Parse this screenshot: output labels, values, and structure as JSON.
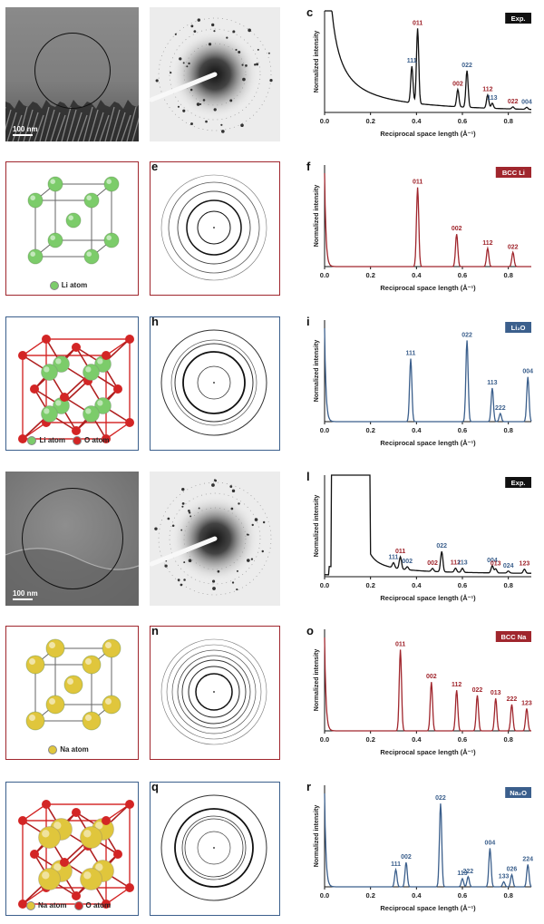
{
  "colors": {
    "red": "#a0262d",
    "blue": "#3b5f8c",
    "li_green": "#7ccc6a",
    "o_red": "#d32525",
    "na_yellow": "#e0c63c",
    "black": "#111111"
  },
  "rows": [
    {
      "labels": [
        "a",
        "b",
        "c"
      ],
      "frame": "none",
      "left_kind": "em",
      "scale_bar": "100 nm",
      "legend": [],
      "middle_kind": "diffraction"
    },
    {
      "labels": [
        "d",
        "e",
        "f"
      ],
      "frame": "red",
      "left_kind": "crystal-bcc-li",
      "legend": [
        {
          "text": "Li atom",
          "color": "#7ccc6a"
        }
      ],
      "middle_kind": "rings-li"
    },
    {
      "labels": [
        "g",
        "h",
        "i"
      ],
      "frame": "blue",
      "left_kind": "crystal-li2o",
      "legend": [
        {
          "text": "Li atom",
          "color": "#7ccc6a"
        },
        {
          "text": "O atom",
          "color": "#d32525"
        }
      ],
      "middle_kind": "rings-li2o"
    },
    {
      "labels": [
        "j",
        "k",
        "l"
      ],
      "frame": "none",
      "left_kind": "em",
      "scale_bar": "100 nm",
      "legend": [],
      "middle_kind": "diffraction"
    },
    {
      "labels": [
        "m",
        "n",
        "o"
      ],
      "frame": "red",
      "left_kind": "crystal-bcc-na",
      "legend": [
        {
          "text": "Na atom",
          "color": "#e0c63c"
        }
      ],
      "middle_kind": "rings-na"
    },
    {
      "labels": [
        "p",
        "q",
        "r"
      ],
      "frame": "blue",
      "left_kind": "crystal-na2o",
      "legend": [
        {
          "text": "Na atom",
          "color": "#e0c63c"
        },
        {
          "text": "O atom",
          "color": "#d32525"
        }
      ],
      "middle_kind": "rings-na2o"
    }
  ],
  "chart_data": [
    {
      "panel": "c",
      "type": "line",
      "badge": "Exp.",
      "badge_color": "#111111",
      "xlabel": "Reciprocal space length (Å⁻¹)",
      "ylabel": "Normalized intensity",
      "xlim": [
        0,
        0.9
      ],
      "xticks": [
        "0.0",
        "0.2",
        "0.4",
        "0.6",
        "0.8"
      ],
      "line_color": "#111111",
      "baseline": "decay",
      "peaks": [
        {
          "x": 0.38,
          "h": 0.36,
          "label": "111",
          "color": "#3b5f8c"
        },
        {
          "x": 0.405,
          "h": 0.74,
          "label": "011",
          "color": "#a0262d"
        },
        {
          "x": 0.58,
          "h": 0.17,
          "label": "002",
          "color": "#a0262d"
        },
        {
          "x": 0.62,
          "h": 0.36,
          "label": "022",
          "color": "#3b5f8c"
        },
        {
          "x": 0.71,
          "h": 0.13,
          "label": "112",
          "color": "#a0262d"
        },
        {
          "x": 0.73,
          "h": 0.05,
          "label": "113",
          "color": "#3b5f8c"
        },
        {
          "x": 0.82,
          "h": 0.02,
          "label": "022",
          "color": "#a0262d"
        },
        {
          "x": 0.88,
          "h": 0.02,
          "label": "004",
          "color": "#3b5f8c"
        }
      ]
    },
    {
      "panel": "f",
      "type": "line",
      "badge": "BCC Li",
      "badge_color": "#a0262d",
      "xlabel": "Reciprocal space length (Å⁻¹)",
      "ylabel": "Normalized intensity",
      "xlim": [
        0,
        0.9
      ],
      "xticks": [
        "0.0",
        "0.2",
        "0.4",
        "0.6",
        "0.8"
      ],
      "line_color": "#a0262d",
      "baseline": "flat",
      "peaks": [
        {
          "x": 0.405,
          "h": 0.78,
          "label": "011",
          "color": "#a0262d"
        },
        {
          "x": 0.575,
          "h": 0.32,
          "label": "002",
          "color": "#a0262d"
        },
        {
          "x": 0.71,
          "h": 0.18,
          "label": "112",
          "color": "#a0262d"
        },
        {
          "x": 0.82,
          "h": 0.14,
          "label": "022",
          "color": "#a0262d"
        }
      ]
    },
    {
      "panel": "i",
      "type": "line",
      "badge": "Li₂O",
      "badge_color": "#3b5f8c",
      "xlabel": "Reciprocal space length (Å⁻¹)",
      "ylabel": "Normalized intensity",
      "xlim": [
        0,
        0.9
      ],
      "xticks": [
        "0.0",
        "0.2",
        "0.4",
        "0.6",
        "0.8"
      ],
      "line_color": "#3b5f8c",
      "baseline": "flat",
      "peaks": [
        {
          "x": 0.375,
          "h": 0.62,
          "label": "111",
          "color": "#3b5f8c"
        },
        {
          "x": 0.62,
          "h": 0.8,
          "label": "022",
          "color": "#3b5f8c"
        },
        {
          "x": 0.73,
          "h": 0.33,
          "label": "113",
          "color": "#3b5f8c"
        },
        {
          "x": 0.765,
          "h": 0.08,
          "label": "222",
          "color": "#3b5f8c"
        },
        {
          "x": 0.885,
          "h": 0.44,
          "label": "004",
          "color": "#3b5f8c"
        }
      ]
    },
    {
      "panel": "l",
      "type": "line",
      "badge": "Exp.",
      "badge_color": "#111111",
      "xlabel": "Reciprocal space length (Å⁻¹)",
      "ylabel": "Normalized intensity",
      "xlim": [
        0,
        0.9
      ],
      "xticks": [
        "0.0",
        "0.2",
        "0.4",
        "0.6",
        "0.8"
      ],
      "line_color": "#111111",
      "baseline": "decay2",
      "peaks": [
        {
          "x": 0.3,
          "h": 0.05,
          "label": "111",
          "color": "#3b5f8c"
        },
        {
          "x": 0.33,
          "h": 0.12,
          "label": "011",
          "color": "#a0262d"
        },
        {
          "x": 0.36,
          "h": 0.03,
          "label": "002",
          "color": "#3b5f8c"
        },
        {
          "x": 0.47,
          "h": 0.03,
          "label": "002",
          "color": "#a0262d"
        },
        {
          "x": 0.51,
          "h": 0.2,
          "label": "022",
          "color": "#3b5f8c"
        },
        {
          "x": 0.57,
          "h": 0.04,
          "label": "112",
          "color": "#a0262d"
        },
        {
          "x": 0.6,
          "h": 0.04,
          "label": "113",
          "color": "#3b5f8c"
        },
        {
          "x": 0.73,
          "h": 0.07,
          "label": "004",
          "color": "#3b5f8c"
        },
        {
          "x": 0.745,
          "h": 0.04,
          "label": "013",
          "color": "#a0262d"
        },
        {
          "x": 0.8,
          "h": 0.02,
          "label": "024",
          "color": "#3b5f8c"
        },
        {
          "x": 0.87,
          "h": 0.04,
          "label": "123",
          "color": "#a0262d"
        }
      ]
    },
    {
      "panel": "o",
      "type": "line",
      "badge": "BCC Na",
      "badge_color": "#a0262d",
      "xlabel": "Reciprocal space length (Å⁻¹)",
      "ylabel": "Normalized intensity",
      "xlim": [
        0,
        0.9
      ],
      "xticks": [
        "0.0",
        "0.2",
        "0.4",
        "0.6",
        "0.8"
      ],
      "line_color": "#a0262d",
      "baseline": "flat",
      "peaks": [
        {
          "x": 0.33,
          "h": 0.8,
          "label": "011",
          "color": "#a0262d"
        },
        {
          "x": 0.465,
          "h": 0.48,
          "label": "002",
          "color": "#a0262d"
        },
        {
          "x": 0.575,
          "h": 0.4,
          "label": "112",
          "color": "#a0262d"
        },
        {
          "x": 0.665,
          "h": 0.35,
          "label": "022",
          "color": "#a0262d"
        },
        {
          "x": 0.745,
          "h": 0.32,
          "label": "013",
          "color": "#a0262d"
        },
        {
          "x": 0.815,
          "h": 0.26,
          "label": "222",
          "color": "#a0262d"
        },
        {
          "x": 0.88,
          "h": 0.22,
          "label": "123",
          "color": "#a0262d"
        }
      ]
    },
    {
      "panel": "r",
      "type": "line",
      "badge": "Na₂O",
      "badge_color": "#3b5f8c",
      "xlabel": "Reciprocal space length (Å⁻¹)",
      "ylabel": "Normalized intensity",
      "xlim": [
        0,
        0.9
      ],
      "xticks": [
        "0.0",
        "0.2",
        "0.4",
        "0.6",
        "0.8"
      ],
      "line_color": "#3b5f8c",
      "baseline": "flat",
      "peaks": [
        {
          "x": 0.31,
          "h": 0.17,
          "label": "111",
          "color": "#3b5f8c"
        },
        {
          "x": 0.355,
          "h": 0.24,
          "label": "002",
          "color": "#3b5f8c"
        },
        {
          "x": 0.505,
          "h": 0.82,
          "label": "022",
          "color": "#3b5f8c"
        },
        {
          "x": 0.6,
          "h": 0.08,
          "label": "113",
          "color": "#3b5f8c"
        },
        {
          "x": 0.625,
          "h": 0.1,
          "label": "222",
          "color": "#3b5f8c"
        },
        {
          "x": 0.72,
          "h": 0.38,
          "label": "004",
          "color": "#3b5f8c"
        },
        {
          "x": 0.78,
          "h": 0.05,
          "label": "133",
          "color": "#3b5f8c"
        },
        {
          "x": 0.815,
          "h": 0.12,
          "label": "026",
          "color": "#3b5f8c"
        },
        {
          "x": 0.885,
          "h": 0.22,
          "label": "224",
          "color": "#3b5f8c"
        }
      ]
    }
  ]
}
